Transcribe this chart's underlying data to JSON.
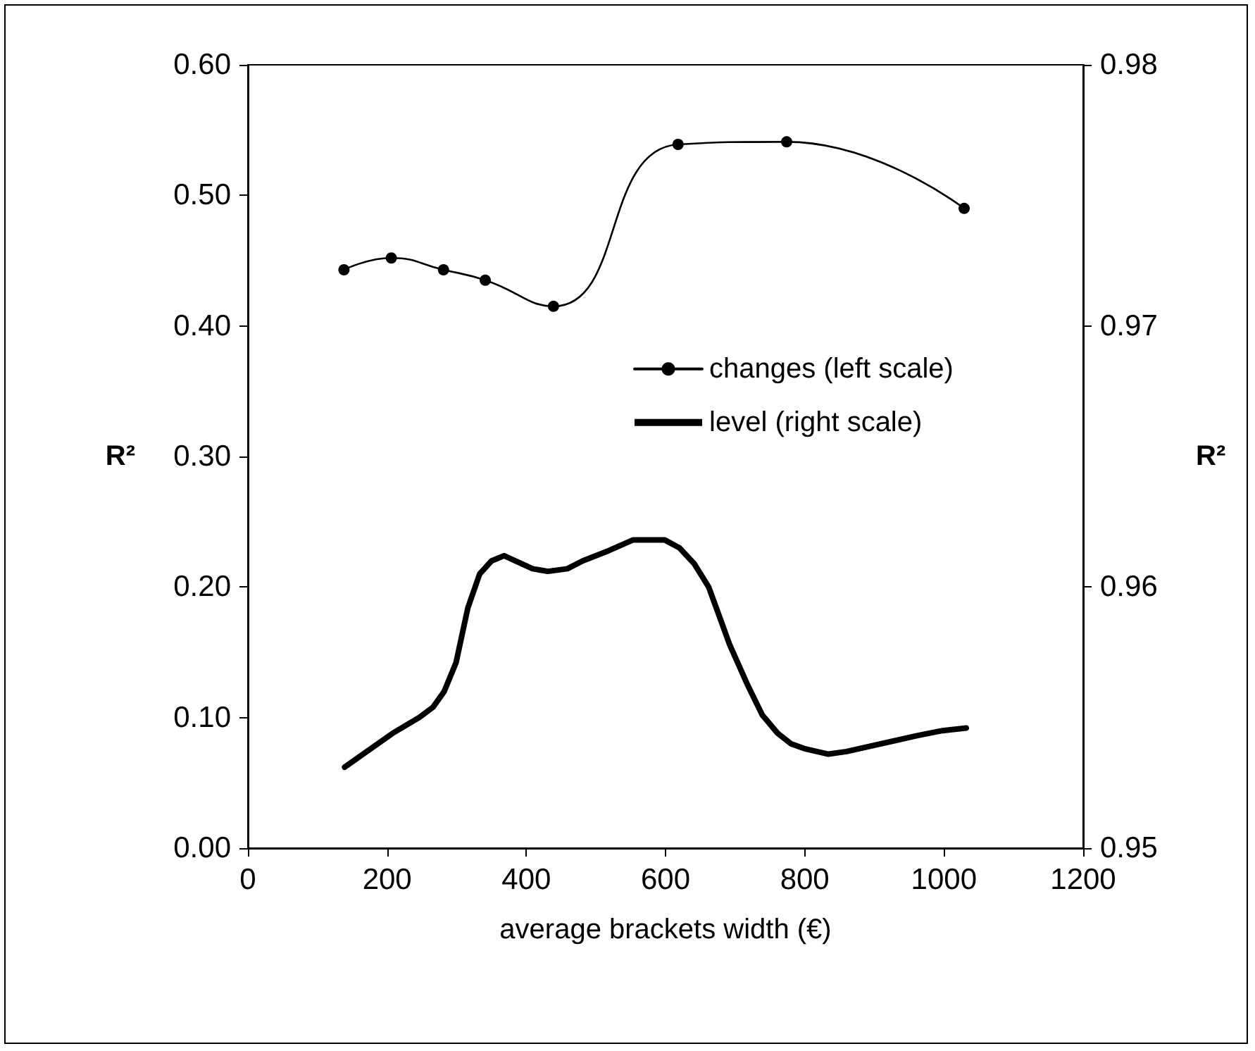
{
  "chart_data": {
    "type": "line",
    "xlabel": "average brackets width (€)",
    "ylabel": "R²",
    "y2label": "R²",
    "xlim": [
      0,
      1200
    ],
    "xticks": [
      0,
      200,
      400,
      600,
      800,
      1000,
      1200
    ],
    "ylim": [
      0,
      0.6
    ],
    "yticks": [
      {
        "value": 0,
        "label": "0.00"
      },
      {
        "value": 0.1,
        "label": "0.10"
      },
      {
        "value": 0.2,
        "label": "0.20"
      },
      {
        "value": 0.3,
        "label": "0.30"
      },
      {
        "value": 0.4,
        "label": "0.40"
      },
      {
        "value": 0.5,
        "label": "0.50"
      },
      {
        "value": 0.6,
        "label": "0.60"
      }
    ],
    "y2lim": [
      0.95,
      0.98
    ],
    "y2ticks": [
      0.95,
      0.96,
      0.97,
      0.98
    ],
    "grid": false,
    "legend": "right",
    "series": [
      {
        "name": "changes (left scale)",
        "color": "#000000",
        "marker": "circle",
        "x": [
          138,
          206,
          281,
          341,
          439,
          618,
          774,
          1029
        ],
        "values": [
          0.443,
          0.452,
          0.443,
          0.435,
          0.415,
          0.539,
          0.541,
          0.49
        ]
      },
      {
        "name": "level (right scale)",
        "color": "#000000",
        "marker": "none",
        "axis": "y2",
        "x": [
          139,
          208,
          246,
          266,
          282,
          299,
          316,
          333,
          350,
          368,
          409,
          431,
          459,
          481,
          519,
          553,
          576,
          599,
          620,
          641,
          662,
          692,
          717,
          739,
          761,
          780,
          801,
          834,
          860,
          960,
          998,
          1032
        ],
        "values": [
          0.9531,
          0.9544,
          0.955,
          0.9554,
          0.956,
          0.9571,
          0.9592,
          0.9605,
          0.961,
          0.9612,
          0.9607,
          0.9606,
          0.9607,
          0.961,
          0.9614,
          0.9618,
          0.9618,
          0.9618,
          0.9615,
          0.9609,
          0.96,
          0.9578,
          0.9563,
          0.9551,
          0.9544,
          0.954,
          0.9538,
          0.9536,
          0.9537,
          0.9543,
          0.9545,
          0.9546
        ]
      }
    ]
  }
}
